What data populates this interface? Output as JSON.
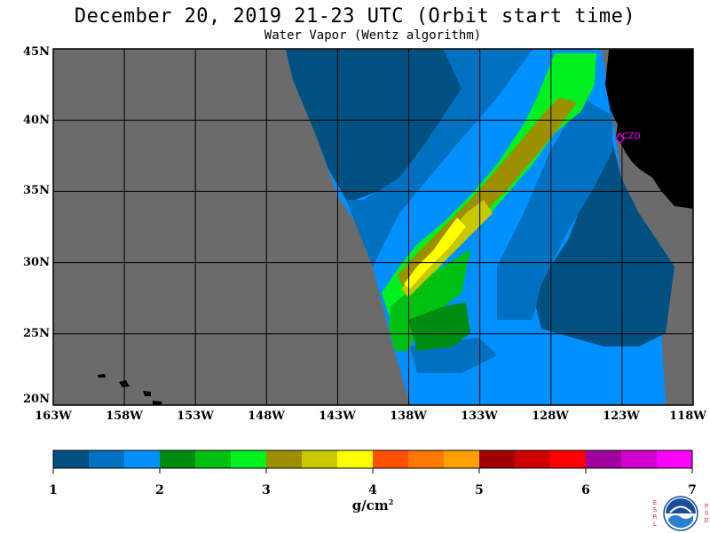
{
  "title": "December 20, 2019  21-23 UTC  (Orbit start time)",
  "subtitle": "Water Vapor (Wentz algorithm)",
  "station_label": "CZD",
  "map": {
    "lat_ticks": [
      "45N",
      "40N",
      "35N",
      "30N",
      "25N",
      "20N"
    ],
    "lon_ticks": [
      "163W",
      "158W",
      "153W",
      "148W",
      "143W",
      "138W",
      "133W",
      "128W",
      "123W",
      "118W"
    ],
    "lat_range": [
      20,
      45
    ],
    "lon_range": [
      -163,
      -118
    ],
    "no_data_color": "#6b6b6b",
    "land_color": "#000000",
    "grid": true
  },
  "colorbar": {
    "ticks": [
      "1",
      "2",
      "3",
      "4",
      "5",
      "6",
      "7"
    ],
    "units": "g/cm",
    "units_exp": "2",
    "range": [
      1,
      7
    ],
    "colors": [
      "#005080",
      "#0070c0",
      "#0090ff",
      "#008c10",
      "#00c010",
      "#00f020",
      "#9c9000",
      "#c8c800",
      "#ffff00",
      "#ff5000",
      "#ff7800",
      "#ffa000",
      "#a00000",
      "#d00000",
      "#ff0000",
      "#a000a0",
      "#d000d0",
      "#ff00ff"
    ]
  },
  "logo": {
    "left_letters": [
      "E",
      "S",
      "R",
      "L"
    ],
    "right_letters": [
      "P",
      "S",
      "D"
    ],
    "text": "NOAA"
  }
}
